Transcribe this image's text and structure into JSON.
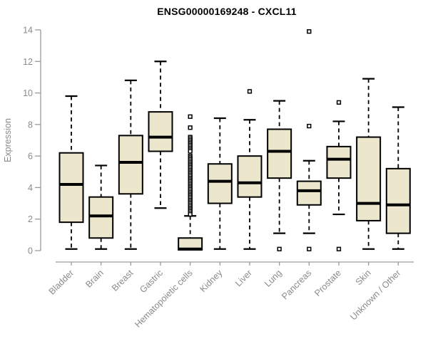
{
  "chart_data": {
    "type": "boxplot",
    "title": "ENSG00000169248 - CXCL11",
    "ylabel": "Expression",
    "ylim": [
      0,
      14
    ],
    "yticks": [
      0,
      2,
      4,
      6,
      8,
      10,
      12,
      14
    ],
    "grid": false,
    "categories": [
      "Bladder",
      "Brain",
      "Breast",
      "Gastric",
      "Hematopoietic cells",
      "Kidney",
      "Liver",
      "Lung",
      "Pancreas",
      "Prostate",
      "Skin",
      "Unknown / Other"
    ],
    "boxes": [
      {
        "category": "Bladder",
        "whisker_low": 0.1,
        "q1": 1.8,
        "median": 4.2,
        "q3": 6.2,
        "whisker_high": 9.8,
        "outliers": []
      },
      {
        "category": "Brain",
        "whisker_low": 0.1,
        "q1": 0.8,
        "median": 2.2,
        "q3": 3.4,
        "whisker_high": 5.4,
        "outliers": []
      },
      {
        "category": "Breast",
        "whisker_low": 0.1,
        "q1": 3.6,
        "median": 5.6,
        "q3": 7.3,
        "whisker_high": 10.8,
        "outliers": []
      },
      {
        "category": "Gastric",
        "whisker_low": 2.7,
        "q1": 6.3,
        "median": 7.2,
        "q3": 8.8,
        "whisker_high": 12.0,
        "outliers": []
      },
      {
        "category": "Hematopoietic cells",
        "whisker_low": 0.05,
        "q1": 0.05,
        "median": 0.1,
        "q3": 0.8,
        "whisker_high": 2.2,
        "outliers": [
          8.5,
          7.8,
          7.2,
          7.1,
          7.0,
          6.9,
          6.8,
          6.7,
          6.6,
          6.5,
          6.4,
          6.3,
          6.0,
          5.9,
          5.8,
          5.7,
          5.6,
          5.5,
          5.4,
          5.3,
          5.2,
          5.1,
          5.0,
          4.9,
          4.8,
          4.7,
          4.6,
          4.5,
          4.4,
          4.3,
          4.2,
          4.1,
          4.0,
          3.9,
          3.8,
          3.7,
          3.6,
          3.5,
          3.4,
          3.3,
          3.2,
          3.1,
          3.0,
          2.9,
          2.8,
          2.7,
          2.6,
          2.5,
          2.4,
          2.3
        ]
      },
      {
        "category": "Kidney",
        "whisker_low": 0.1,
        "q1": 3.0,
        "median": 4.4,
        "q3": 5.5,
        "whisker_high": 8.4,
        "outliers": []
      },
      {
        "category": "Liver",
        "whisker_low": 0.1,
        "q1": 3.4,
        "median": 4.3,
        "q3": 6.0,
        "whisker_high": 8.3,
        "outliers": [
          10.1
        ]
      },
      {
        "category": "Lung",
        "whisker_low": 1.1,
        "q1": 4.6,
        "median": 6.3,
        "q3": 7.7,
        "whisker_high": 9.5,
        "outliers": [
          0.1
        ]
      },
      {
        "category": "Pancreas",
        "whisker_low": 1.1,
        "q1": 2.9,
        "median": 3.8,
        "q3": 4.4,
        "whisker_high": 5.7,
        "outliers": [
          13.9,
          7.9,
          0.1
        ]
      },
      {
        "category": "Prostate",
        "whisker_low": 2.3,
        "q1": 4.6,
        "median": 5.8,
        "q3": 6.6,
        "whisker_high": 8.2,
        "outliers": [
          9.4,
          0.1
        ]
      },
      {
        "category": "Skin",
        "whisker_low": 0.1,
        "q1": 1.9,
        "median": 3.0,
        "q3": 7.2,
        "whisker_high": 10.9,
        "outliers": []
      },
      {
        "category": "Unknown / Other",
        "whisker_low": 0.1,
        "q1": 1.1,
        "median": 2.9,
        "q3": 5.2,
        "whisker_high": 9.1,
        "outliers": []
      }
    ],
    "colors": {
      "box_fill": "#ece7cc",
      "box_stroke": "#000000",
      "median": "#000000",
      "axis_line": "#9a9a9a",
      "axis_text": "#8a8a8a",
      "title": "#000000",
      "outlier_fill": "#ffffff"
    }
  }
}
